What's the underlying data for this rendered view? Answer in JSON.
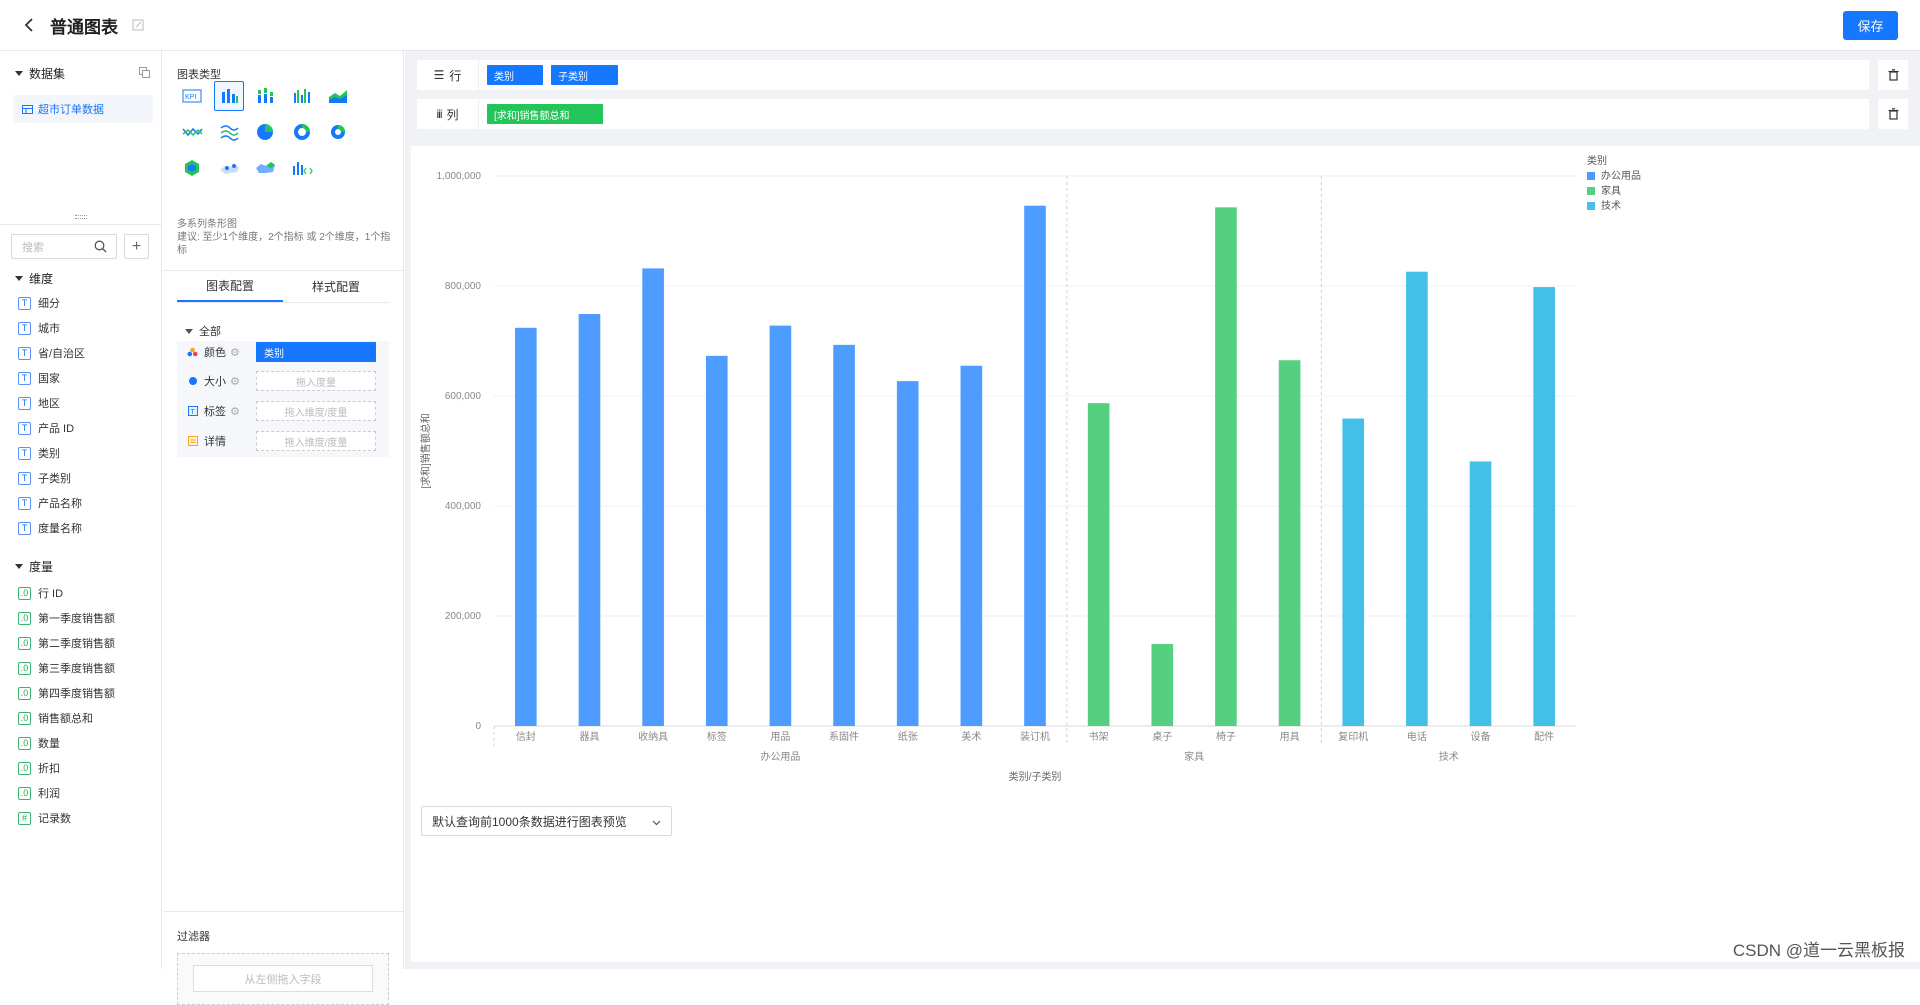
{
  "header": {
    "title": "普通图表",
    "save_label": "保存"
  },
  "left": {
    "dataset_title": "数据集",
    "dataset_item": "超市订单数据",
    "search_placeholder": "搜索",
    "dimensions_title": "维度",
    "dimensions": [
      "细分",
      "城市",
      "省/自治区",
      "国家",
      "地区",
      "产品 ID",
      "类别",
      "子类别",
      "产品名称",
      "度量名称"
    ],
    "measures_title": "度量",
    "measures": [
      "行 ID",
      "第一季度销售额",
      "第二季度销售额",
      "第三季度销售额",
      "第四季度销售额",
      "销售额总和",
      "数量",
      "折扣",
      "利润",
      "记录数"
    ]
  },
  "middle": {
    "chart_type_label": "图表类型",
    "chart_types": [
      "kpi-icon",
      "multi-bar-icon",
      "stacked-bar-icon",
      "grouped-bar-icon",
      "area-icon",
      "line-icon",
      "wave-icon",
      "pie-icon",
      "donut-icon",
      "ring-icon",
      "hexagon-icon",
      "map-icon",
      "map2-icon",
      "code-chart-icon"
    ],
    "hint_title": "多系列条形图",
    "hint_text": "建议: 至少1个维度，2个指标 或 2个维度，1个指标",
    "tabs": [
      "图表配置",
      "样式配置"
    ],
    "config_all": "全部",
    "marks": [
      {
        "label": "颜色",
        "value": "类别",
        "filled": true
      },
      {
        "label": "大小",
        "value": "拖入度量",
        "filled": false
      },
      {
        "label": "标签",
        "value": "拖入维度/度量",
        "filled": false
      },
      {
        "label": "详情",
        "value": "拖入维度/度量",
        "filled": false
      }
    ],
    "filter_label": "过滤器",
    "filter_placeholder": "从左侧拖入字段"
  },
  "shelves": {
    "row_label": "行",
    "row_pills": [
      "类别",
      "子类别"
    ],
    "col_label": "列",
    "col_pills": [
      "[求和]销售额总和"
    ]
  },
  "preview_label": "默认查询前1000条数据进行图表预览",
  "watermark": "CSDN @道一云黑板报",
  "colors": {
    "accent": "#1677ff",
    "office": "#4e9cff",
    "furniture": "#55d080",
    "tech": "#43bfe8",
    "pill_green": "#23c45a"
  },
  "chart_data": {
    "type": "bar",
    "xlabel": "类别/子类别",
    "ylabel": "[求和]销售额总和",
    "ylim": [
      0,
      1000000
    ],
    "yticks": [
      "0",
      "200,000",
      "400,000",
      "600,000",
      "800,000",
      "1,000,000"
    ],
    "legend_title": "类别",
    "legend_position": "top-right",
    "grid": true,
    "series": [
      {
        "name": "办公用品",
        "categories": [
          "信封",
          "器具",
          "收纳具",
          "标签",
          "用品",
          "系固件",
          "纸张",
          "美术",
          "装订机"
        ],
        "values": [
          724000,
          749000,
          832000,
          673000,
          728000,
          693000,
          627000,
          655000,
          946000
        ]
      },
      {
        "name": "家具",
        "categories": [
          "书架",
          "桌子",
          "椅子",
          "用具"
        ],
        "values": [
          587000,
          149000,
          943000,
          665000
        ]
      },
      {
        "name": "技术",
        "categories": [
          "复印机",
          "电话",
          "设备",
          "配件"
        ],
        "values": [
          559000,
          826000,
          481000,
          798000
        ]
      }
    ]
  }
}
